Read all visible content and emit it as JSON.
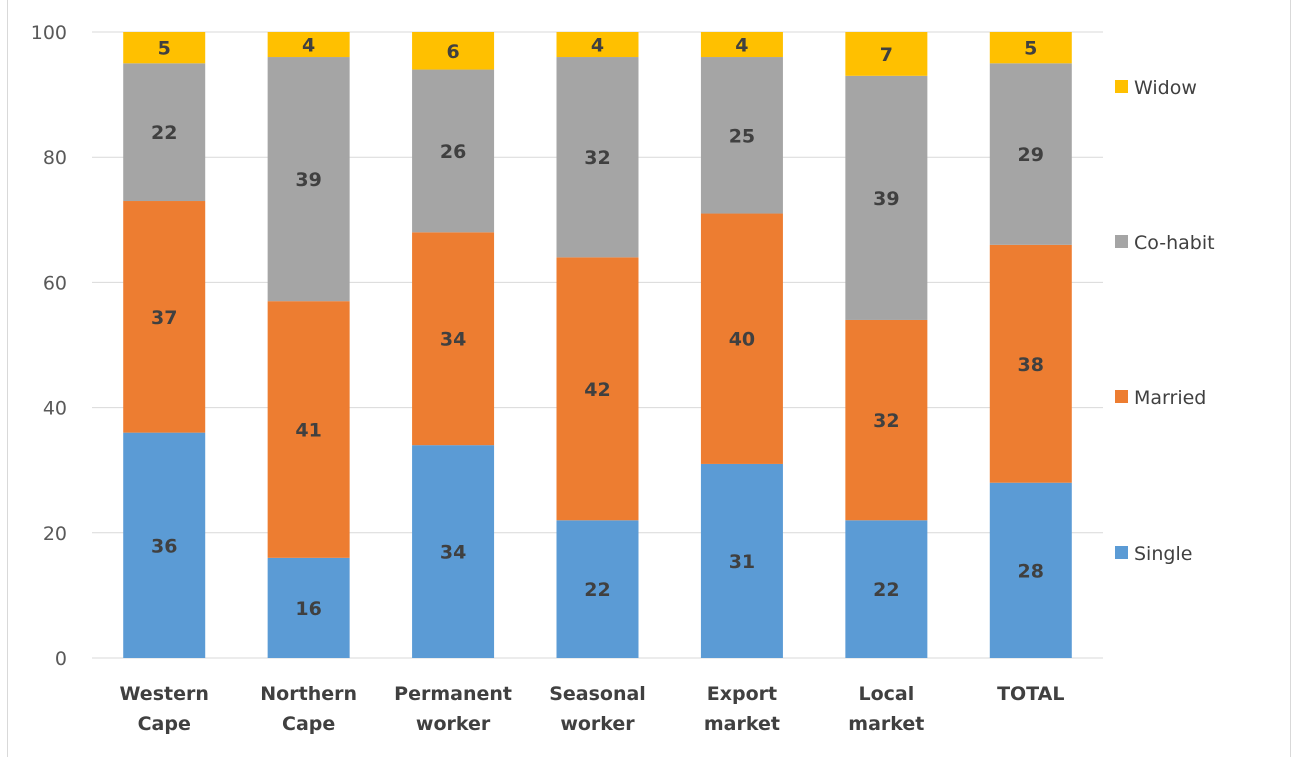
{
  "chart_data": {
    "type": "bar",
    "stacked": true,
    "categories": [
      [
        "Western",
        "Cape"
      ],
      [
        "Northern",
        "Cape"
      ],
      [
        "Permanent",
        "worker"
      ],
      [
        "Seasonal",
        "worker"
      ],
      [
        "Export",
        "market"
      ],
      [
        "Local",
        "market"
      ],
      [
        "TOTAL"
      ]
    ],
    "series": [
      {
        "name": "Single",
        "color": "#5b9bd5",
        "values": [
          36,
          16,
          34,
          22,
          31,
          22,
          28
        ]
      },
      {
        "name": "Married",
        "color": "#ed7d31",
        "values": [
          37,
          41,
          34,
          42,
          40,
          32,
          38
        ]
      },
      {
        "name": "Co-habit",
        "color": "#a5a5a5",
        "values": [
          22,
          39,
          26,
          32,
          25,
          39,
          29
        ]
      },
      {
        "name": "Widow",
        "color": "#ffc000",
        "values": [
          5,
          4,
          6,
          4,
          4,
          7,
          5
        ]
      }
    ],
    "ylim": [
      0,
      100
    ],
    "yticks": [
      0,
      20,
      40,
      60,
      80,
      100
    ],
    "grid": true,
    "legend_position": "right"
  }
}
